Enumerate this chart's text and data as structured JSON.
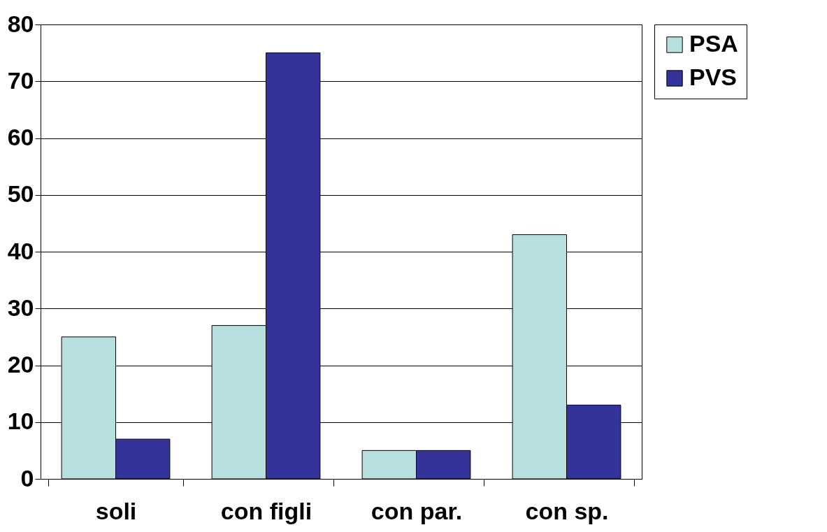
{
  "chart_data": {
    "type": "bar",
    "categories": [
      "soli",
      "con figli",
      "con par.",
      "con sp."
    ],
    "series": [
      {
        "name": "PSA",
        "color": "#b8dfe0",
        "values": [
          25,
          27,
          5,
          43
        ]
      },
      {
        "name": "PVS",
        "color": "#333399",
        "values": [
          7,
          75,
          5,
          13
        ]
      }
    ],
    "ylim": [
      0,
      80
    ],
    "yticks": [
      0,
      10,
      20,
      30,
      40,
      50,
      60,
      70,
      80
    ],
    "grid": "y",
    "legend": "right"
  }
}
